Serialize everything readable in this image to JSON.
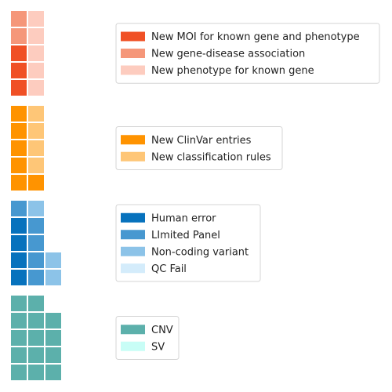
{
  "chart_data": {
    "type": "waffle",
    "title": "",
    "panels": [
      {
        "name": "",
        "series": [
          {
            "name": "New MOI for known gene and phenotype",
            "value": 3,
            "color": "#f05025"
          },
          {
            "name": "New gene-disease association",
            "value": 2,
            "color": "#f5977a"
          },
          {
            "name": "New phenotype for known gene",
            "value": 5,
            "color": "#fdccbf"
          }
        ]
      },
      {
        "name": "",
        "series": [
          {
            "name": "New ClinVar entries",
            "value": 6,
            "color": "#ff9300"
          },
          {
            "name": "New classification rules",
            "value": 4,
            "color": "#fec677"
          }
        ]
      },
      {
        "name": "",
        "series": [
          {
            "name": "Human error",
            "value": 4,
            "color": "#0772bd"
          },
          {
            "name": "LImited Panel",
            "value": 5,
            "color": "#4798d0"
          },
          {
            "name": "Non-coding variant",
            "value": 3,
            "color": "#8cc3e8"
          },
          {
            "name": "QC Fail",
            "value": 0,
            "color": "#d4ecfb"
          }
        ]
      },
      {
        "name": "",
        "series": [
          {
            "name": "CNV",
            "value": 14,
            "color": "#5cb0ab"
          },
          {
            "name": "SV",
            "value": 0,
            "color": "#c8fdf6"
          }
        ]
      }
    ],
    "grid_rows": 5,
    "fill_order": "column-major, bottom-to-top",
    "legend_placement": "right"
  }
}
